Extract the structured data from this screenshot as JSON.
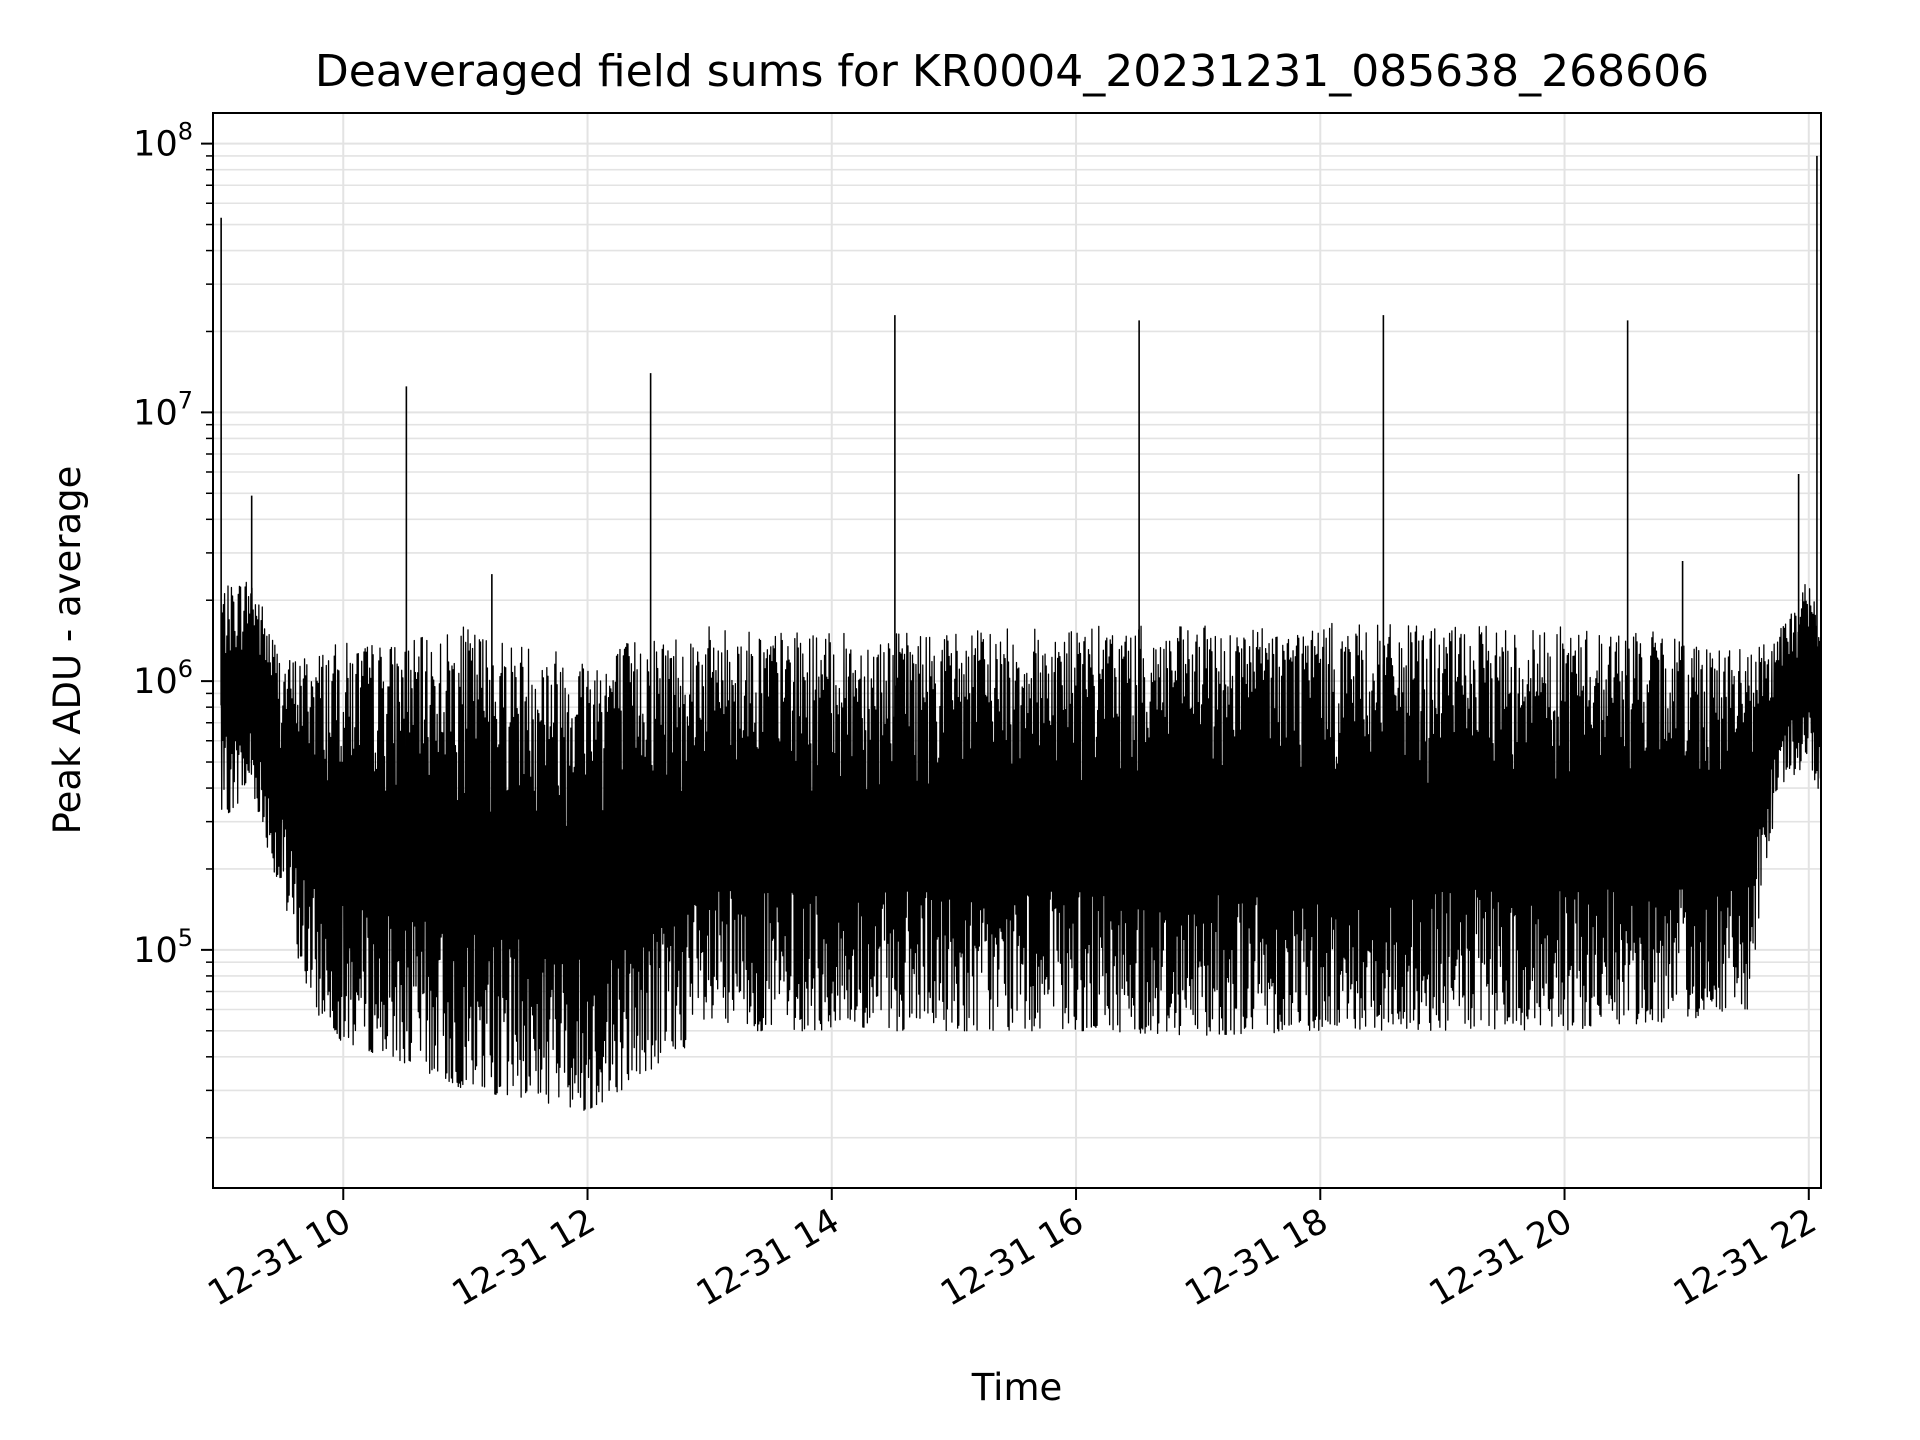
{
  "chart_data": {
    "type": "line",
    "title": "Deaveraged field sums for KR0004_20231231_085638_268606",
    "xlabel": "Time",
    "ylabel": "Peak ADU - average",
    "y_scale": "log",
    "grid": true,
    "legend": "none",
    "x_range": [
      "2023-12-31 08:56",
      "2023-12-31 22:06"
    ],
    "ylim": [
      13000,
      130000000
    ],
    "x_ticks": [
      {
        "value": "2023-12-31 10:00",
        "label": "12-31 10"
      },
      {
        "value": "2023-12-31 12:00",
        "label": "12-31 12"
      },
      {
        "value": "2023-12-31 14:00",
        "label": "12-31 14"
      },
      {
        "value": "2023-12-31 16:00",
        "label": "12-31 16"
      },
      {
        "value": "2023-12-31 18:00",
        "label": "12-31 18"
      },
      {
        "value": "2023-12-31 20:00",
        "label": "12-31 20"
      },
      {
        "value": "2023-12-31 22:00",
        "label": "12-31 22"
      }
    ],
    "y_ticks": [
      {
        "value": 100000,
        "base": "10",
        "exp": "5"
      },
      {
        "value": 1000000,
        "base": "10",
        "exp": "6"
      },
      {
        "value": 10000000,
        "base": "10",
        "exp": "7"
      },
      {
        "value": 100000000,
        "base": "10",
        "exp": "8"
      }
    ],
    "series": [
      {
        "color": "#000000",
        "envelope": [
          {
            "x": "2023-12-31 09:00",
            "low": 300000,
            "high": 2200000
          },
          {
            "x": "2023-12-31 09:15",
            "low": 400000,
            "high": 2500000
          },
          {
            "x": "2023-12-31 09:30",
            "low": 150000,
            "high": 1200000
          },
          {
            "x": "2023-12-31 09:45",
            "low": 60000,
            "high": 1300000
          },
          {
            "x": "2023-12-31 10:00",
            "low": 45000,
            "high": 1400000
          },
          {
            "x": "2023-12-31 10:30",
            "low": 38000,
            "high": 1400000
          },
          {
            "x": "2023-12-31 11:00",
            "low": 30000,
            "high": 1600000
          },
          {
            "x": "2023-12-31 11:30",
            "low": 28000,
            "high": 1400000
          },
          {
            "x": "2023-12-31 12:00",
            "low": 25000,
            "high": 1300000
          },
          {
            "x": "2023-12-31 12:30",
            "low": 35000,
            "high": 1500000
          },
          {
            "x": "2023-12-31 13:00",
            "low": 50000,
            "high": 1600000
          },
          {
            "x": "2023-12-31 14:00",
            "low": 50000,
            "high": 1500000
          },
          {
            "x": "2023-12-31 15:00",
            "low": 50000,
            "high": 1550000
          },
          {
            "x": "2023-12-31 16:00",
            "low": 50000,
            "high": 1600000
          },
          {
            "x": "2023-12-31 17:00",
            "low": 48000,
            "high": 1600000
          },
          {
            "x": "2023-12-31 18:00",
            "low": 50000,
            "high": 1650000
          },
          {
            "x": "2023-12-31 19:00",
            "low": 50000,
            "high": 1600000
          },
          {
            "x": "2023-12-31 20:00",
            "low": 50000,
            "high": 1600000
          },
          {
            "x": "2023-12-31 21:00",
            "low": 55000,
            "high": 1500000
          },
          {
            "x": "2023-12-31 21:30",
            "low": 60000,
            "high": 1300000
          },
          {
            "x": "2023-12-31 21:45",
            "low": 400000,
            "high": 1500000
          },
          {
            "x": "2023-12-31 22:00",
            "low": 500000,
            "high": 2500000
          },
          {
            "x": "2023-12-31 22:06",
            "low": 350000,
            "high": 1500000
          }
        ],
        "spikes": [
          {
            "x": "2023-12-31 09:00",
            "y": 53000000
          },
          {
            "x": "2023-12-31 09:15",
            "y": 4900000
          },
          {
            "x": "2023-12-31 10:31",
            "y": 12500000
          },
          {
            "x": "2023-12-31 11:13",
            "y": 2500000
          },
          {
            "x": "2023-12-31 12:31",
            "y": 14000000
          },
          {
            "x": "2023-12-31 14:31",
            "y": 23000000
          },
          {
            "x": "2023-12-31 16:31",
            "y": 22000000
          },
          {
            "x": "2023-12-31 18:31",
            "y": 23000000
          },
          {
            "x": "2023-12-31 20:31",
            "y": 22000000
          },
          {
            "x": "2023-12-31 20:58",
            "y": 2800000
          },
          {
            "x": "2023-12-31 21:55",
            "y": 5900000
          },
          {
            "x": "2023-12-31 22:04",
            "y": 90000000
          }
        ]
      }
    ]
  }
}
